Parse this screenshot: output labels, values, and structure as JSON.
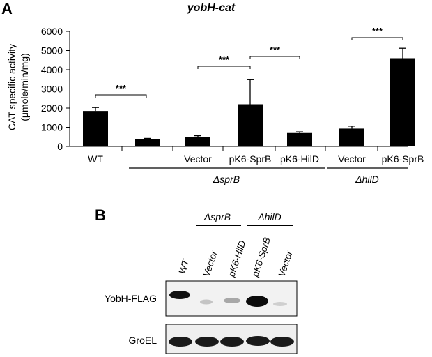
{
  "panel_a": {
    "label": "A",
    "title": "yobH-cat"
  },
  "panel_b": {
    "label": "B",
    "group_labels": [
      "ΔsprB",
      "ΔhilD"
    ],
    "lanes": [
      "WT",
      "Vector",
      "pK6-HilD",
      "pK6-SprB",
      "Vector"
    ],
    "row_labels": [
      "YobH-FLAG",
      "GroEL"
    ]
  },
  "chart_data": {
    "type": "bar",
    "title": "yobH-cat",
    "ylabel_line1": "CAT specific activity",
    "ylabel_line2": "(μmole/min/mg)",
    "ylim": [
      0,
      6000
    ],
    "yticks": [
      "0",
      "1000",
      "2000",
      "3000",
      "4000",
      "5000",
      "6000"
    ],
    "categories": [
      "WT",
      "",
      "Vector",
      "pK6-SprB",
      "pK6-HilD",
      "Vector",
      "pK6-SprB"
    ],
    "values": [
      1850,
      380,
      500,
      2200,
      700,
      930,
      4600
    ],
    "errors": [
      180,
      40,
      60,
      1280,
      60,
      130,
      520
    ],
    "groups": [
      "ΔsprB",
      "ΔhilD"
    ],
    "significance": [
      "***",
      "***",
      "***",
      "***"
    ]
  }
}
